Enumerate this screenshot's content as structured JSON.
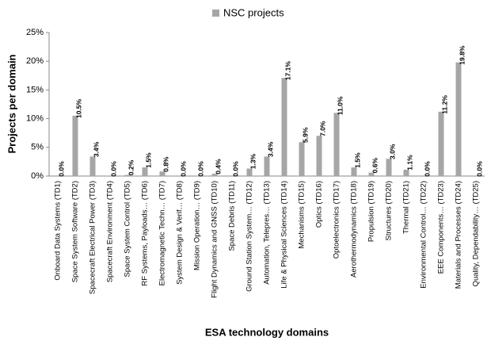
{
  "chart_data": {
    "type": "bar",
    "xlabel": "ESA technology domains",
    "ylabel": "Projects per domain",
    "categories": [
      "Onboard Data Systems (TD1)",
      "Space System Software (TD2)",
      "Spacecraft Electrical Power (TD3)",
      "Spacecraft Environment (TD4)",
      "Space System Control (TD5)",
      "RF Systems, Payloads… (TD6)",
      "Electromagnetic Techn… (TD7)",
      "System Design & Verif… (TD8)",
      "Mission Operation… (TD9)",
      "Flight Dynamics and GNSS (TD10)",
      "Space Debris (TD11)",
      "Ground Station System… (TD12)",
      "Automation, Telepres… (TD13)",
      "Life & Physical Sciences (TD14)",
      "Mechanisms (TD15)",
      "Optics (TD16)",
      "Optoelectronics (TD17)",
      "Aerothermodynamics (TD18)",
      "Propulsion (TD19)",
      "Structures (TD20)",
      "Thermal (TD21)",
      "Environmental Control… (TD22)",
      "EEE Components… (TD23)",
      "Materials and Processes (TD24)",
      "Quality, Dependability… (TD25)"
    ],
    "series": [
      {
        "name": "NSC projects",
        "color": "#a6a6a6",
        "values": [
          0.0,
          10.5,
          3.4,
          0.0,
          0.2,
          1.5,
          0.8,
          0.0,
          0.0,
          0.4,
          0.0,
          1.3,
          3.4,
          17.1,
          5.9,
          7.0,
          11.0,
          1.5,
          0.6,
          3.0,
          1.1,
          0.0,
          11.2,
          19.8,
          0.0
        ],
        "value_labels": [
          "0.0%",
          "10.5%",
          "3.4%",
          "0.0%",
          "0.2%",
          "1.5%",
          "0.8%",
          "0.0%",
          "0.0%",
          "0.4%",
          "0.0%",
          "1.3%",
          "3.4%",
          "17.1%",
          "5.9%",
          "7.0%",
          "11.0%",
          "1.5%",
          "0.6%",
          "3.0%",
          "1.1%",
          "0.0%",
          "11.2%",
          "19.8%",
          "0.0%"
        ]
      }
    ],
    "ylim": [
      0,
      25
    ],
    "yticks": [
      {
        "value": 0,
        "label": "0%"
      },
      {
        "value": 5,
        "label": "5%"
      },
      {
        "value": 10,
        "label": "10%"
      },
      {
        "value": 15,
        "label": "15%"
      },
      {
        "value": 20,
        "label": "20%"
      },
      {
        "value": 25,
        "label": "25%"
      }
    ],
    "legend": "top"
  }
}
